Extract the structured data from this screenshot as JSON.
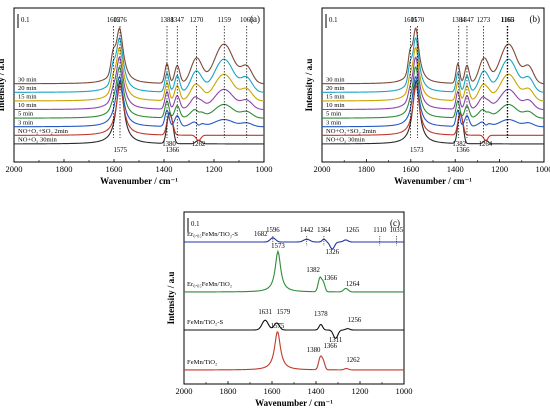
{
  "chart_data": [
    {
      "panel": "(a)",
      "type": "line",
      "xlabel": "Wavenumber / cm⁻¹",
      "ylabel": "Intensity / a.u",
      "xlim": [
        2000,
        1000
      ],
      "xticks": [
        2000,
        1800,
        1600,
        1400,
        1200,
        1000
      ],
      "scale_bar": "0.1",
      "series": [
        {
          "name": "NO+O₂ 30min",
          "color": "#2b2b2b"
        },
        {
          "name": "NO+O₂+SO₂ 2min",
          "color": "#c0392b"
        },
        {
          "name": "3 min",
          "color": "#2457c5"
        },
        {
          "name": "5 min",
          "color": "#2e8b3a"
        },
        {
          "name": "10 min",
          "color": "#8e44ad"
        },
        {
          "name": "15 min",
          "color": "#c9a400"
        },
        {
          "name": "20 min",
          "color": "#1aa3c4"
        },
        {
          "name": "30 min",
          "color": "#7b4a3a"
        }
      ],
      "peaks": [
        {
          "x": 1602,
          "label": "1602",
          "where": "top"
        },
        {
          "x": 1576,
          "label": "1576",
          "where": "top"
        },
        {
          "x": 1388,
          "label": "1388",
          "where": "top"
        },
        {
          "x": 1347,
          "label": "1347",
          "where": "top"
        },
        {
          "x": 1270,
          "label": "1270",
          "where": "top"
        },
        {
          "x": 1159,
          "label": "1159",
          "where": "top"
        },
        {
          "x": 1069,
          "label": "1069",
          "where": "top"
        },
        {
          "x": 1575,
          "label": "1575",
          "where": "bottom"
        },
        {
          "x": 1380,
          "label": "1380",
          "where": "bottom"
        },
        {
          "x": 1366,
          "label": "1366",
          "where": "bottom"
        },
        {
          "x": 1262,
          "label": "1262",
          "where": "bottom"
        }
      ]
    },
    {
      "panel": "(b)",
      "type": "line",
      "xlabel": "Wavenumber / cm⁻¹",
      "ylabel": "Intensity / a.u",
      "xlim": [
        2000,
        1000
      ],
      "xticks": [
        2000,
        1800,
        1600,
        1400,
        1200,
        1000
      ],
      "scale_bar": "0.1",
      "series": [
        {
          "name": "NO+O₂ 30min",
          "color": "#2b2b2b"
        },
        {
          "name": "NO+O₂+SO₂ 2min",
          "color": "#c0392b"
        },
        {
          "name": "3 min",
          "color": "#2457c5"
        },
        {
          "name": "5 min",
          "color": "#2e8b3a"
        },
        {
          "name": "10 min",
          "color": "#8e44ad"
        },
        {
          "name": "15 min",
          "color": "#c9a400"
        },
        {
          "name": "20 min",
          "color": "#1aa3c4"
        },
        {
          "name": "30 min",
          "color": "#7b4a3a"
        }
      ],
      "peaks": [
        {
          "x": 1601,
          "label": "1601",
          "where": "top"
        },
        {
          "x": 1570,
          "label": "1570",
          "where": "top"
        },
        {
          "x": 1384,
          "label": "1384",
          "where": "top"
        },
        {
          "x": 1347,
          "label": "1347",
          "where": "top"
        },
        {
          "x": 1273,
          "label": "1273",
          "where": "top"
        },
        {
          "x": 1166,
          "label": "1166",
          "where": "top"
        },
        {
          "x": 1163,
          "label": "1163",
          "where": "top"
        },
        {
          "x": 1573,
          "label": "1573",
          "where": "bottom"
        },
        {
          "x": 1382,
          "label": "1382",
          "where": "bottom"
        },
        {
          "x": 1366,
          "label": "1366",
          "where": "bottom"
        },
        {
          "x": 1264,
          "label": "1264",
          "where": "bottom"
        }
      ]
    },
    {
      "panel": "(c)",
      "type": "line",
      "xlabel": "Wavenumber / cm⁻¹",
      "ylabel": "Intensity / a.u",
      "xlim": [
        2000,
        1000
      ],
      "xticks": [
        2000,
        1800,
        1600,
        1400,
        1200,
        1000
      ],
      "scale_bar": "0.1",
      "series": [
        {
          "name": "FeMn/TiO₂",
          "color": "#c0392b"
        },
        {
          "name": "FeMn/TiO₂-S",
          "color": "#111111"
        },
        {
          "name": "Er₀.₀₅FeMn/TiO₂",
          "color": "#2e8b3a"
        },
        {
          "name": "Er₀.₀₅FeMn/TiO₂-S",
          "color": "#2233a8"
        }
      ],
      "peaks": [
        {
          "label": "1575"
        },
        {
          "label": "1380"
        },
        {
          "label": "1366"
        },
        {
          "label": "1262"
        },
        {
          "label": "1631"
        },
        {
          "label": "1579"
        },
        {
          "label": "1378"
        },
        {
          "label": "1311"
        },
        {
          "label": "1256"
        },
        {
          "label": "1573"
        },
        {
          "label": "1382"
        },
        {
          "label": "1366"
        },
        {
          "label": "1264"
        },
        {
          "label": "1682"
        },
        {
          "label": "1596"
        },
        {
          "label": "1442"
        },
        {
          "label": "1364"
        },
        {
          "label": "1326"
        },
        {
          "label": "1265"
        },
        {
          "label": "1110"
        },
        {
          "label": "1035"
        }
      ]
    }
  ]
}
